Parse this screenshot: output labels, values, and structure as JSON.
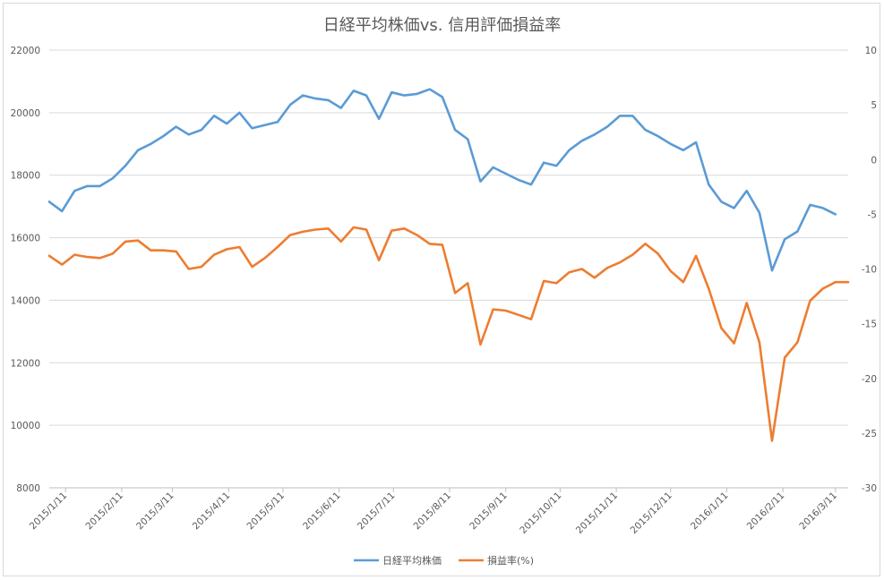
{
  "chart_data": {
    "type": "line",
    "title": "日経平均株価vs. 信用評価損益率",
    "x": [
      "2015/1/2",
      "2015/1/9",
      "2015/1/16",
      "2015/1/23",
      "2015/1/30",
      "2015/2/6",
      "2015/2/13",
      "2015/2/20",
      "2015/2/27",
      "2015/3/6",
      "2015/3/13",
      "2015/3/20",
      "2015/3/27",
      "2015/4/3",
      "2015/4/10",
      "2015/4/17",
      "2015/4/24",
      "2015/5/1",
      "2015/5/8",
      "2015/5/15",
      "2015/5/22",
      "2015/5/29",
      "2015/6/5",
      "2015/6/12",
      "2015/6/19",
      "2015/6/26",
      "2015/7/3",
      "2015/7/10",
      "2015/7/17",
      "2015/7/24",
      "2015/7/31",
      "2015/8/7",
      "2015/8/14",
      "2015/8/21",
      "2015/8/28",
      "2015/9/4",
      "2015/9/11",
      "2015/9/18",
      "2015/9/25",
      "2015/10/2",
      "2015/10/9",
      "2015/10/16",
      "2015/10/23",
      "2015/10/30",
      "2015/11/6",
      "2015/11/13",
      "2015/11/20",
      "2015/11/27",
      "2015/12/4",
      "2015/12/11",
      "2015/12/18",
      "2015/12/25",
      "2016/1/1",
      "2016/1/8",
      "2016/1/15",
      "2016/1/22",
      "2016/1/29",
      "2016/2/5",
      "2016/2/12",
      "2016/2/19",
      "2016/2/26",
      "2016/3/4",
      "2016/3/11",
      "2016/3/18"
    ],
    "x_tick_labels": [
      "2015/1/11",
      "2015/2/11",
      "2015/3/11",
      "2015/4/11",
      "2015/5/11",
      "2015/6/11",
      "2015/7/11",
      "2015/8/11",
      "2015/9/11",
      "2015/10/11",
      "2015/11/11",
      "2015/12/11",
      "2016/1/11",
      "2016/2/11",
      "2016/3/11"
    ],
    "x_tick_dates": [
      "2015/1/11",
      "2015/2/11",
      "2015/3/11",
      "2015/4/11",
      "2015/5/11",
      "2015/6/11",
      "2015/7/11",
      "2015/8/11",
      "2015/9/11",
      "2015/10/11",
      "2015/11/11",
      "2015/12/11",
      "2016/1/11",
      "2016/2/11",
      "2016/3/11"
    ],
    "y_left": {
      "min": 8000,
      "max": 22000,
      "ticks": [
        8000,
        10000,
        12000,
        14000,
        16000,
        18000,
        20000,
        22000
      ]
    },
    "y_right": {
      "min": -30,
      "max": 10,
      "ticks": [
        -30,
        -25,
        -20,
        -15,
        -10,
        -5,
        0,
        5,
        10
      ]
    },
    "grid": true,
    "legend_position": "bottom",
    "series": [
      {
        "name": "日経平均株価",
        "axis": "left",
        "color": "#5b9bd5",
        "values": [
          17150,
          16850,
          17500,
          17650,
          17650,
          17900,
          18300,
          18800,
          19000,
          19250,
          19550,
          19300,
          19450,
          19900,
          19650,
          20000,
          19500,
          19600,
          19700,
          20250,
          20550,
          20450,
          20400,
          20150,
          20700,
          20550,
          19800,
          20650,
          20550,
          20600,
          20750,
          20500,
          19450,
          19150,
          17800,
          18250,
          18050,
          17850,
          17700,
          18400,
          18300,
          18800,
          19100,
          19300,
          19550,
          19900,
          19900,
          19450,
          19250,
          19000,
          18800,
          19050,
          17700,
          17150,
          16950,
          17500,
          16800,
          14950,
          15950,
          16200,
          17050,
          16950,
          16750,
          16750
        ],
        "values_shown": 63
      },
      {
        "name": "損益率(%)",
        "axis": "right",
        "color": "#ed7d31",
        "values": [
          -8.8,
          -9.6,
          -8.7,
          -8.9,
          -9.0,
          -8.6,
          -7.5,
          -7.4,
          -8.3,
          -8.3,
          -8.4,
          -10.0,
          -9.8,
          -8.7,
          -8.2,
          -8.0,
          -9.8,
          -9.0,
          -8.0,
          -6.9,
          -6.6,
          -6.4,
          -6.3,
          -7.5,
          -6.2,
          -6.4,
          -9.2,
          -6.5,
          -6.3,
          -6.9,
          -7.7,
          -7.8,
          -12.2,
          -11.3,
          -16.9,
          -13.7,
          -13.8,
          -14.2,
          -14.6,
          -11.1,
          -11.3,
          -10.3,
          -10.0,
          -10.8,
          -9.9,
          -9.4,
          -8.7,
          -7.7,
          -8.6,
          -10.2,
          -11.2,
          -8.8,
          -11.8,
          -15.4,
          -16.8,
          -13.1,
          -16.7,
          -25.7,
          -18.1,
          -16.7,
          -12.9,
          -11.8,
          -11.2,
          -11.2
        ]
      }
    ]
  }
}
